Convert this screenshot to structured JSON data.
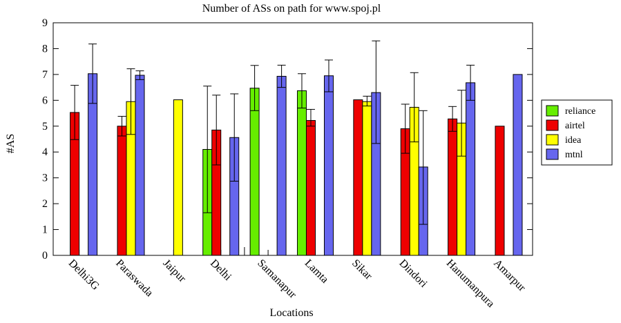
{
  "chart_data": {
    "type": "bar",
    "title": "Number of ASs on path for www.spoj.pl",
    "xlabel": "Locations",
    "ylabel": "#AS",
    "ylim": [
      0,
      9
    ],
    "yticks": [
      "0",
      "1",
      "2",
      "3",
      "4",
      "5",
      "6",
      "7",
      "8",
      "9"
    ],
    "categories": [
      "Delhi3G",
      "Paraswada",
      "Jaipur",
      "Delhi",
      "Samanapur",
      "Lamta",
      "Sikar",
      "Dindori",
      "Hanumanpura",
      "Amarpur"
    ],
    "legend_position": "right",
    "series": [
      {
        "name": "reliance",
        "color": "#66ee00",
        "values": [
          null,
          null,
          null,
          4.1,
          6.47,
          6.37,
          null,
          null,
          null,
          null
        ],
        "err_low": [
          null,
          null,
          null,
          1.65,
          5.6,
          5.7,
          null,
          null,
          null,
          null
        ],
        "err_high": [
          null,
          null,
          null,
          6.55,
          7.35,
          7.03,
          null,
          null,
          null,
          null
        ]
      },
      {
        "name": "airtel",
        "color": "#ee0000",
        "values": [
          5.53,
          5.0,
          null,
          4.85,
          null,
          5.22,
          6.02,
          4.9,
          5.28,
          5.0
        ],
        "err_low": [
          4.48,
          4.62,
          null,
          3.5,
          null,
          5.0,
          6.02,
          3.95,
          4.8,
          5.0
        ],
        "err_high": [
          6.58,
          5.38,
          null,
          6.2,
          null,
          5.65,
          6.02,
          5.85,
          5.76,
          5.0
        ]
      },
      {
        "name": "idea",
        "color": "#ffff00",
        "values": [
          null,
          5.95,
          6.02,
          null,
          null,
          null,
          5.95,
          5.73,
          5.12,
          null
        ],
        "err_low": [
          null,
          4.68,
          6.02,
          null,
          null,
          null,
          5.78,
          4.39,
          3.84,
          null
        ],
        "err_high": [
          null,
          7.22,
          6.02,
          null,
          null,
          null,
          6.16,
          7.07,
          6.39,
          null
        ]
      },
      {
        "name": "mtnl",
        "color": "#6666ee",
        "values": [
          7.03,
          6.97,
          null,
          4.56,
          6.93,
          6.95,
          6.3,
          3.42,
          6.68,
          7.0
        ],
        "err_low": [
          5.88,
          6.8,
          null,
          2.87,
          6.5,
          6.33,
          4.33,
          1.2,
          6.0,
          7.0
        ],
        "err_high": [
          8.18,
          7.14,
          null,
          6.25,
          7.36,
          7.56,
          8.3,
          5.6,
          7.36,
          7.0
        ]
      }
    ]
  }
}
